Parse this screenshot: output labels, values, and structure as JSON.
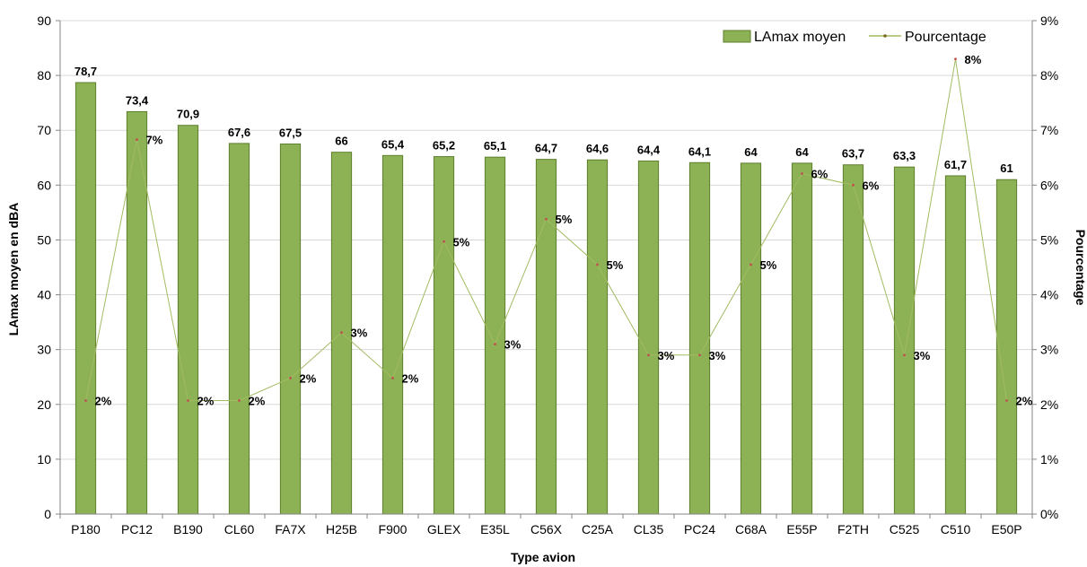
{
  "chart_data": {
    "type": "bar",
    "title": "",
    "xlabel": "Type avion",
    "ylabel": "LAmax moyen en dBA",
    "y2label": "Pourcentage",
    "ylim": [
      0,
      90
    ],
    "y2lim": [
      0,
      9
    ],
    "yticks": [
      "0",
      "10",
      "20",
      "30",
      "40",
      "50",
      "60",
      "70",
      "80",
      "90"
    ],
    "y2ticks": [
      "0%",
      "1%",
      "2%",
      "3%",
      "4%",
      "5%",
      "6%",
      "7%",
      "8%",
      "9%"
    ],
    "grid": true,
    "legend_position": "top-right",
    "categories": [
      "P180",
      "PC12",
      "B190",
      "CL60",
      "FA7X",
      "H25B",
      "F900",
      "GLEX",
      "E35L",
      "C56X",
      "C25A",
      "CL35",
      "PC24",
      "C68A",
      "E55P",
      "F2TH",
      "C525",
      "C510",
      "E50P"
    ],
    "series": [
      {
        "name": "LAmax moyen",
        "type": "bar",
        "axis": "left",
        "color": "#8DB255",
        "values": [
          78.7,
          73.4,
          70.9,
          67.6,
          67.5,
          66,
          65.4,
          65.2,
          65.1,
          64.7,
          64.6,
          64.4,
          64.1,
          64,
          64,
          63.7,
          63.3,
          61.7,
          61
        ],
        "labels": [
          "78,7",
          "73,4",
          "70,9",
          "67,6",
          "67,5",
          "66",
          "65,4",
          "65,2",
          "65,1",
          "64,7",
          "64,6",
          "64,4",
          "64,1",
          "64",
          "64",
          "63,7",
          "63,3",
          "61,7",
          "61"
        ]
      },
      {
        "name": "Pourcentage",
        "type": "line",
        "axis": "right",
        "color": "#A2BB62",
        "marker_color": "#C0504D",
        "values": [
          2.07,
          6.83,
          2.07,
          2.07,
          2.48,
          3.31,
          2.48,
          4.97,
          3.1,
          5.38,
          4.55,
          2.9,
          2.9,
          4.55,
          6.21,
          6.0,
          2.9,
          8.3,
          2.07
        ],
        "labels": [
          "2%",
          "7%",
          "2%",
          "2%",
          "2%",
          "3%",
          "2%",
          "5%",
          "3%",
          "5%",
          "5%",
          "3%",
          "3%",
          "5%",
          "6%",
          "6%",
          "3%",
          "8%",
          "2%"
        ]
      }
    ]
  }
}
